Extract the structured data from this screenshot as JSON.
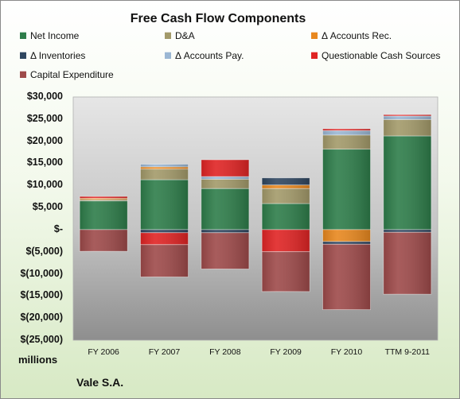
{
  "chart_data": {
    "type": "bar",
    "stacked": true,
    "title": "Free Cash Flow Components",
    "categories": [
      "FY 2006",
      "FY 2007",
      "FY 2008",
      "FY 2009",
      "FY 2010",
      "TTM 9-2011"
    ],
    "ylim": [
      -25000,
      30000
    ],
    "yticks": [
      30000,
      25000,
      20000,
      15000,
      10000,
      5000,
      0,
      -5000,
      -10000,
      -15000,
      -20000,
      -25000
    ],
    "ytick_labels": [
      "$30,000",
      "$25,000",
      "$20,000",
      "$15,000",
      "$10,000",
      "$5,000",
      "$-",
      "$(5,000)",
      "$(10,000)",
      "$(15,000)",
      "$(20,000)",
      "$(25,000)"
    ],
    "unit_label": "millions",
    "grid": false,
    "legend_position": "top",
    "series": [
      {
        "name": "Net Income",
        "color": "#2e7d4a",
        "values": [
          6500,
          11300,
          9300,
          5900,
          18200,
          21200
        ]
      },
      {
        "name": "D&A",
        "color": "#a39a6a",
        "values": [
          300,
          2400,
          2100,
          3400,
          3200,
          3700
        ]
      },
      {
        "name": "Δ Accounts Rec.",
        "color": "#e8881f",
        "values": [
          300,
          500,
          0,
          800,
          -2700,
          0
        ]
      },
      {
        "name": "Δ Inventories",
        "color": "#2f4660",
        "values": [
          0,
          -700,
          -700,
          1600,
          -600,
          -600
        ]
      },
      {
        "name": "Δ Accounts Pay.",
        "color": "#9bb7d4",
        "values": [
          0,
          600,
          600,
          0,
          1000,
          800
        ]
      },
      {
        "name": "Questionable Cash Sources",
        "color": "#e02424",
        "values": [
          400,
          -2700,
          3800,
          -5000,
          400,
          300
        ]
      },
      {
        "name": "Capital Expenditure",
        "color": "#9e4a4a",
        "values": [
          -4900,
          -7300,
          -8200,
          -9000,
          -14800,
          -14000
        ]
      }
    ]
  },
  "footer": {
    "company": "Vale S.A."
  }
}
